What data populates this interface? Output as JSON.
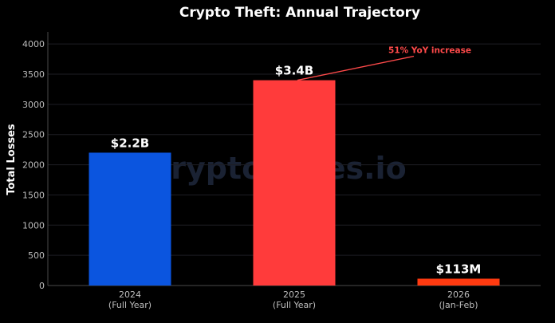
{
  "chart_data": {
    "type": "bar",
    "title": "Crypto Theft: Annual Trajectory",
    "ylabel": "Total Losses",
    "xlabel": "",
    "ylim": [
      0,
      4200
    ],
    "yticks": [
      0,
      500,
      1000,
      1500,
      2000,
      2500,
      3000,
      3500,
      4000
    ],
    "grid": true,
    "categories": [
      {
        "line1": "2024",
        "line2": "(Full Year)"
      },
      {
        "line1": "2025",
        "line2": "(Full Year)"
      },
      {
        "line1": "2026",
        "line2": "(Jan-Feb)"
      }
    ],
    "values": [
      2200,
      3400,
      113
    ],
    "data_labels": [
      "$2.2B",
      "$3.4B",
      "$113M"
    ],
    "colors": [
      "#0b55df",
      "#ff3b3b",
      "#ff3a10"
    ],
    "annotation": {
      "text": "51% YoY increase",
      "target_index": 1,
      "color": "#ff4a4a"
    },
    "watermark": "CryptoTimes.io"
  }
}
